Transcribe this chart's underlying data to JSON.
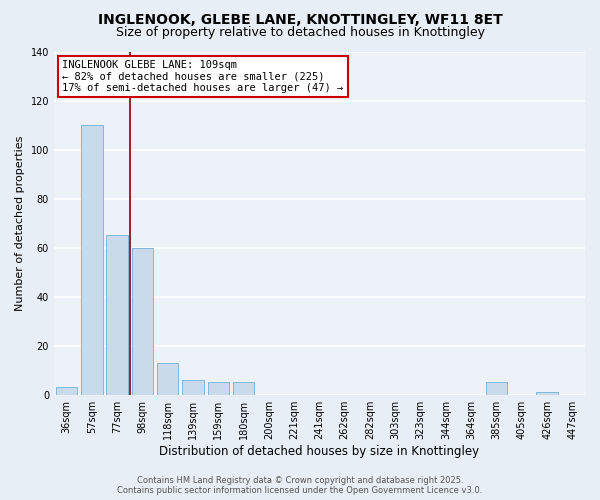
{
  "title": "INGLENOOK, GLEBE LANE, KNOTTINGLEY, WF11 8ET",
  "subtitle": "Size of property relative to detached houses in Knottingley",
  "xlabel": "Distribution of detached houses by size in Knottingley",
  "ylabel": "Number of detached properties",
  "categories": [
    "36sqm",
    "57sqm",
    "77sqm",
    "98sqm",
    "118sqm",
    "139sqm",
    "159sqm",
    "180sqm",
    "200sqm",
    "221sqm",
    "241sqm",
    "262sqm",
    "282sqm",
    "303sqm",
    "323sqm",
    "344sqm",
    "364sqm",
    "385sqm",
    "405sqm",
    "426sqm",
    "447sqm"
  ],
  "values": [
    3,
    110,
    65,
    60,
    13,
    6,
    5,
    5,
    0,
    0,
    0,
    0,
    0,
    0,
    0,
    0,
    0,
    5,
    0,
    1,
    0
  ],
  "bar_color": "#c9daea",
  "bar_edge_color": "#7fb8d8",
  "subject_line_color": "#8b0000",
  "annotation_title": "INGLENOOK GLEBE LANE: 109sqm",
  "annotation_line1": "← 82% of detached houses are smaller (225)",
  "annotation_line2": "17% of semi-detached houses are larger (47) →",
  "annotation_box_color": "#ffffff",
  "annotation_box_edge_color": "#cc0000",
  "ylim": [
    0,
    140
  ],
  "yticks": [
    0,
    20,
    40,
    60,
    80,
    100,
    120,
    140
  ],
  "footer_line1": "Contains HM Land Registry data © Crown copyright and database right 2025.",
  "footer_line2": "Contains public sector information licensed under the Open Government Licence v3.0.",
  "bg_color": "#e8eef5",
  "plot_bg_color": "#edf2f8",
  "grid_color": "#ffffff",
  "title_fontsize": 10,
  "subtitle_fontsize": 9,
  "tick_fontsize": 7,
  "ylabel_fontsize": 8,
  "xlabel_fontsize": 8.5,
  "footer_fontsize": 6
}
